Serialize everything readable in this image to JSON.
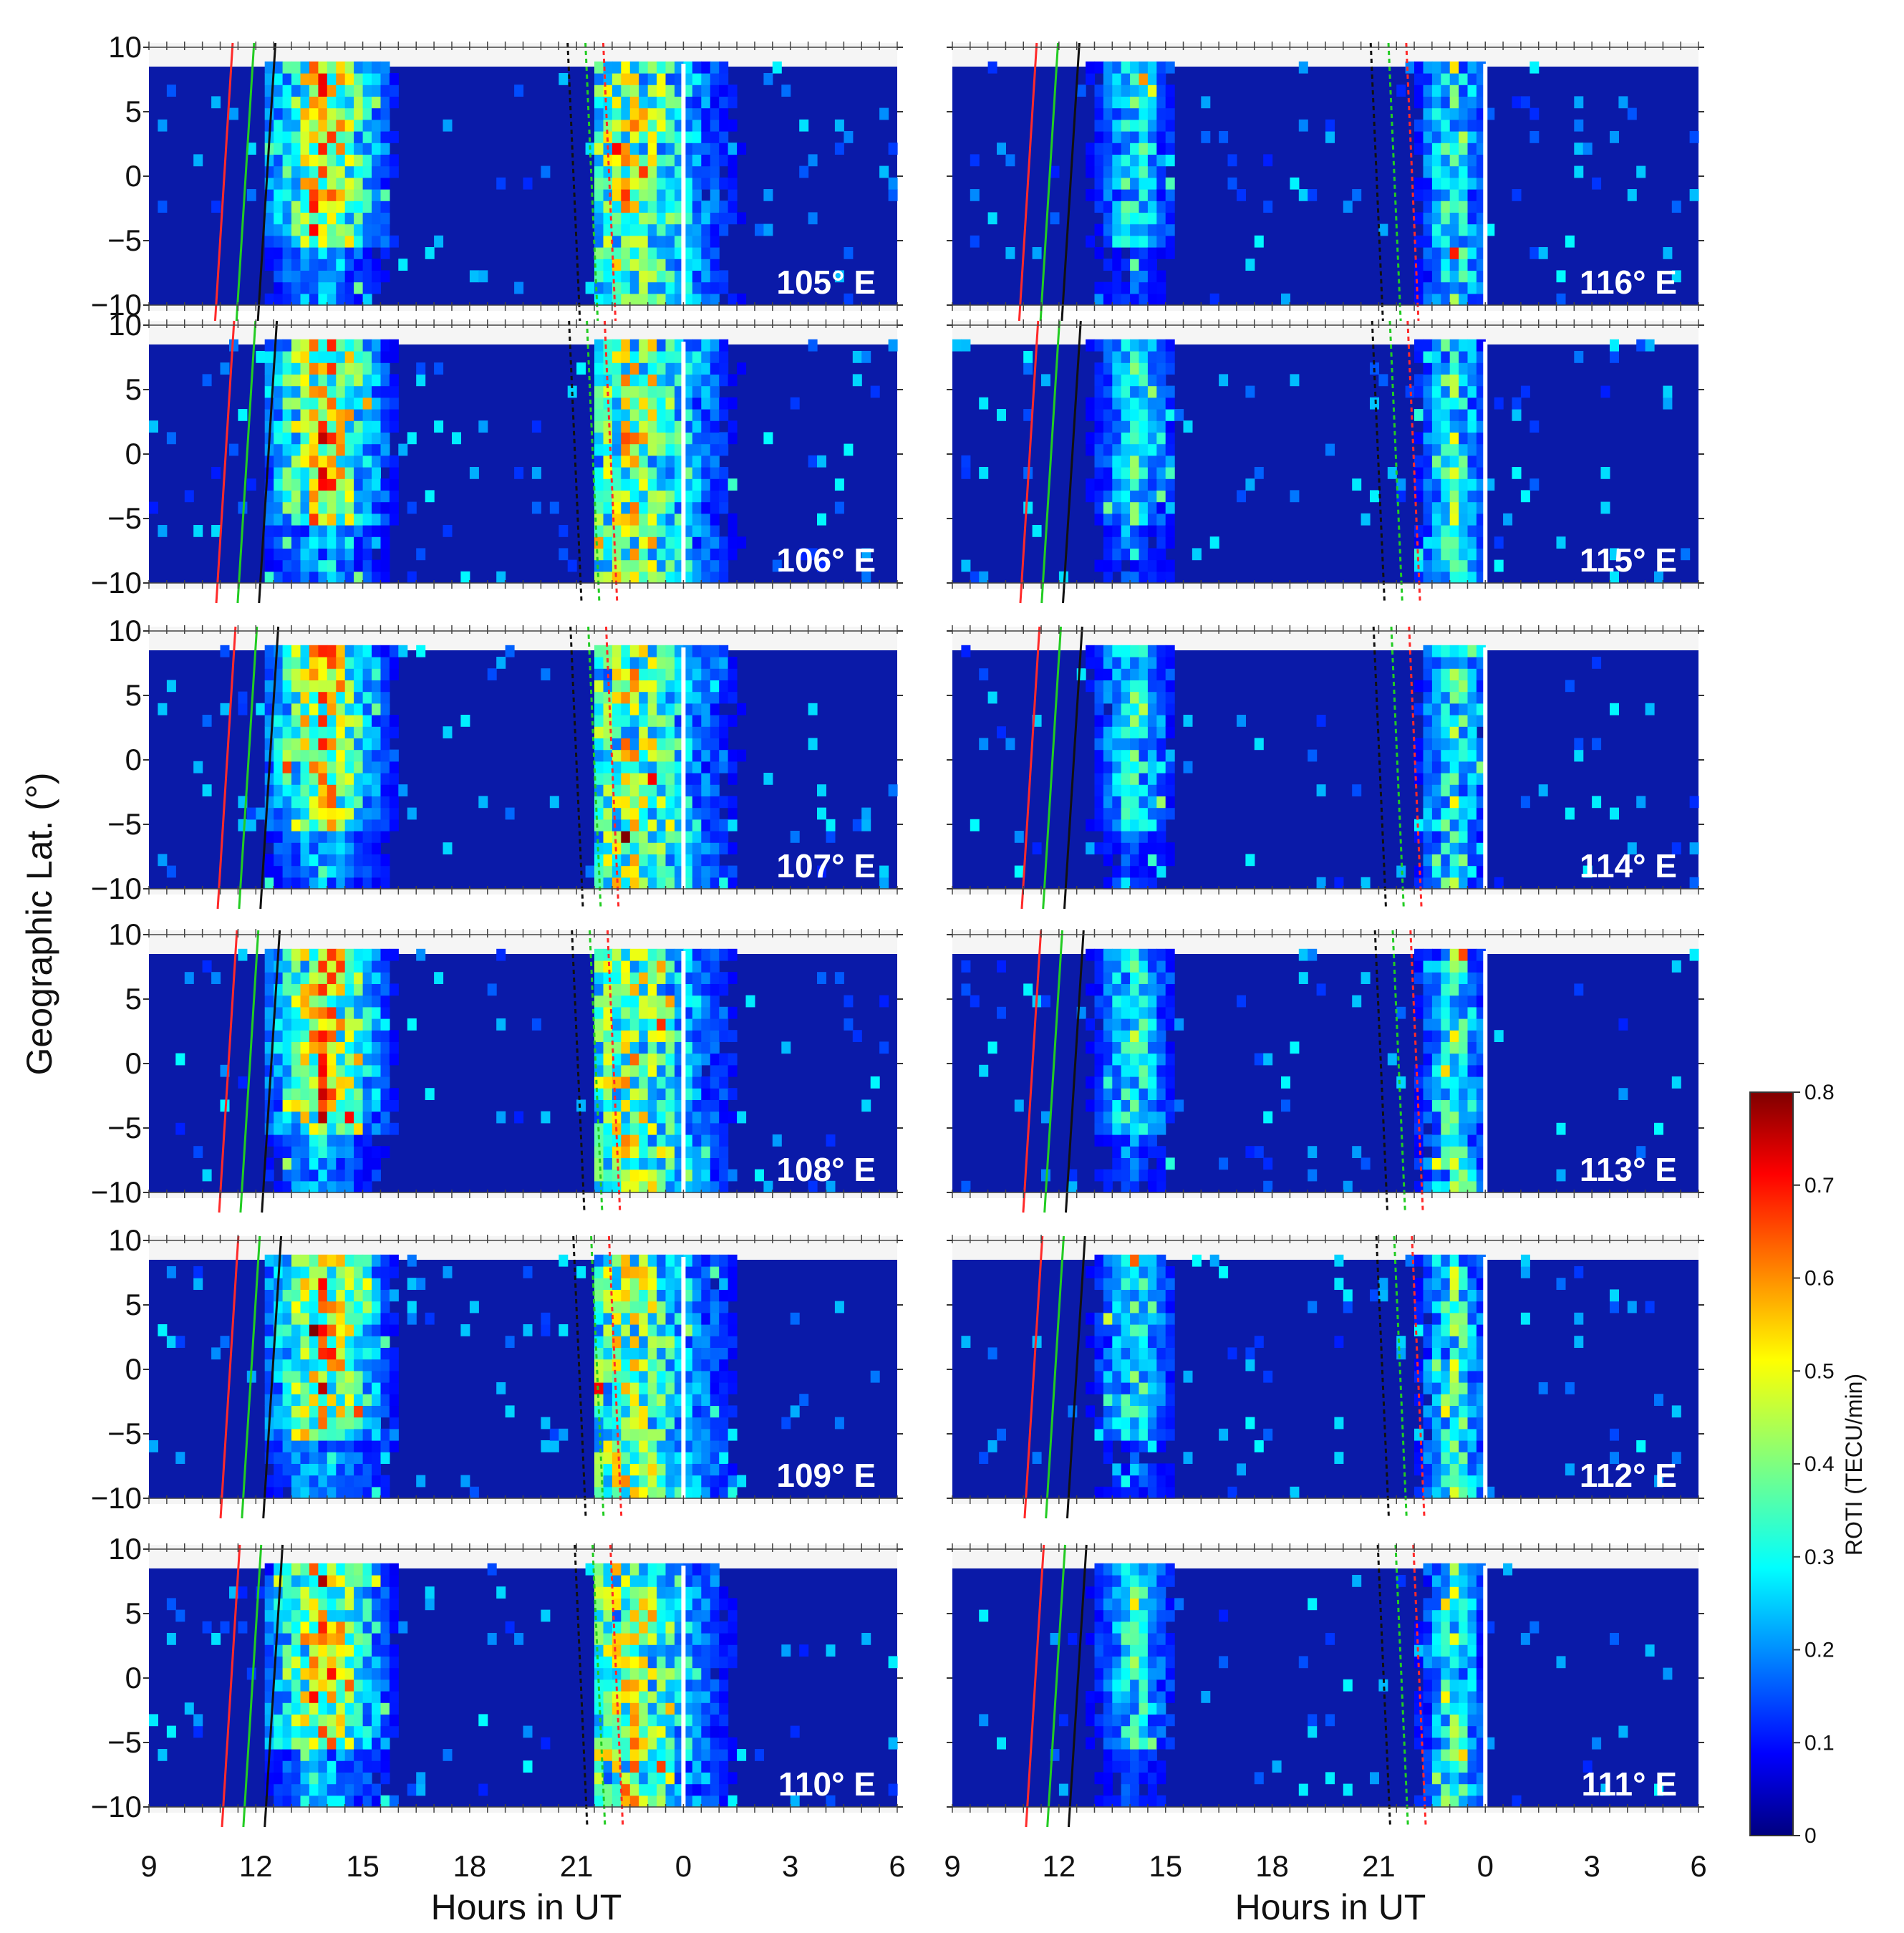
{
  "figure": {
    "ylabel": "Geographic Lat. (°)",
    "xlabel": "Hours in UT"
  },
  "chart_data": {
    "type": "heatmap",
    "layout": "6x2 panel grid",
    "x": {
      "label": "Hours in UT",
      "ticks": [
        "9",
        "12",
        "15",
        "18",
        "21",
        "0",
        "3",
        "6"
      ],
      "range_hours": [
        9,
        30
      ],
      "data_gap_at": "24 (white vertical line)"
    },
    "y": {
      "label": "Geographic Lat. (°)",
      "ticks": [
        "10",
        "5",
        "0",
        "-5",
        "-10"
      ],
      "range": [
        -10,
        10
      ],
      "data_range": [
        -10,
        8.5
      ]
    },
    "colorbar": {
      "label": "ROTI (TECU/min)",
      "range": [
        0,
        0.8
      ],
      "ticks": [
        "0",
        "0.1",
        "0.2",
        "0.3",
        "0.4",
        "0.5",
        "0.6",
        "0.7",
        "0.8"
      ],
      "colormap": "jet"
    },
    "panels": [
      {
        "label": "105° E",
        "column": "left",
        "row": 0
      },
      {
        "label": "106° E",
        "column": "left",
        "row": 1
      },
      {
        "label": "107° E",
        "column": "left",
        "row": 2
      },
      {
        "label": "108° E",
        "column": "left",
        "row": 3
      },
      {
        "label": "109° E",
        "column": "left",
        "row": 4
      },
      {
        "label": "110° E",
        "column": "left",
        "row": 5
      },
      {
        "label": "116° E",
        "column": "right",
        "row": 0
      },
      {
        "label": "115° E",
        "column": "right",
        "row": 1
      },
      {
        "label": "114° E",
        "column": "right",
        "row": 2
      },
      {
        "label": "113° E",
        "column": "right",
        "row": 3
      },
      {
        "label": "112° E",
        "column": "right",
        "row": 4
      },
      {
        "label": "111° E",
        "column": "right",
        "row": 5
      }
    ],
    "terminator_lines": {
      "solid_colors": [
        "#ff2a2a",
        "#22cc22",
        "#111111"
      ],
      "dashed_colors": [
        "#111111",
        "#22cc22",
        "#ff2a2a"
      ],
      "sunset_range_hours": [
        11.0,
        12.5
      ],
      "sunrise_range_hours": [
        20.9,
        22.2
      ]
    },
    "activity_regions": [
      {
        "period": "post-sunset",
        "hours": [
          12.0,
          16.5
        ],
        "peak_roti": 0.8
      },
      {
        "period": "pre-sunrise",
        "hours": [
          21.0,
          26.0
        ],
        "peak_roti": 0.75
      }
    ]
  }
}
